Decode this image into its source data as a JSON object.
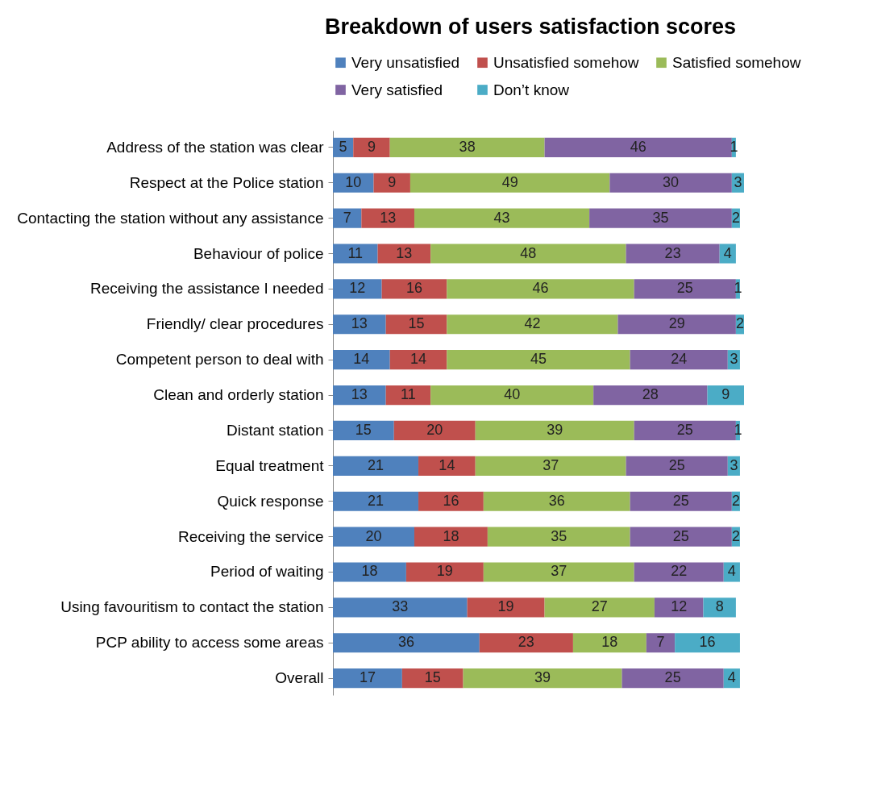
{
  "chart_data": {
    "type": "bar",
    "orientation": "horizontal",
    "stacked": true,
    "title": "Breakdown of users satisfaction scores",
    "categories": [
      "Address of the station was clear",
      "Respect at the Police station",
      "Contacting the station without any assistance",
      "Behaviour of police",
      "Receiving the assistance I needed",
      "Friendly/ clear procedures",
      "Competent person to deal with",
      "Clean and orderly station",
      "Distant station",
      "Equal treatment",
      "Quick response",
      "Receiving  the  service",
      "Period of waiting",
      "Using favouritism to contact the station",
      "PCP ability to access some areas",
      "Overall"
    ],
    "series": [
      {
        "name": "Very unsatisfied",
        "color": "#4f81bd",
        "values": [
          5,
          10,
          7,
          11,
          12,
          13,
          14,
          13,
          15,
          21,
          21,
          20,
          18,
          33,
          36,
          17
        ]
      },
      {
        "name": "Unsatisfied somehow",
        "color": "#c0504d",
        "values": [
          9,
          9,
          13,
          13,
          16,
          15,
          14,
          11,
          20,
          14,
          16,
          18,
          19,
          19,
          23,
          15
        ]
      },
      {
        "name": "Satisfied somehow",
        "color": "#9bbb59",
        "values": [
          38,
          49,
          43,
          48,
          46,
          42,
          45,
          40,
          39,
          37,
          36,
          35,
          37,
          27,
          18,
          39
        ]
      },
      {
        "name": "Very satisfied",
        "color": "#8064a2",
        "values": [
          46,
          30,
          35,
          23,
          25,
          29,
          24,
          28,
          25,
          25,
          25,
          25,
          22,
          12,
          7,
          25
        ]
      },
      {
        "name": "Don’t know",
        "color": "#4bacc6",
        "values": [
          1,
          3,
          2,
          4,
          1,
          2,
          3,
          9,
          1,
          3,
          2,
          2,
          4,
          8,
          16,
          4
        ]
      }
    ],
    "data_labels": true,
    "legend": "top",
    "tick_labels": "y",
    "grid": false
  }
}
